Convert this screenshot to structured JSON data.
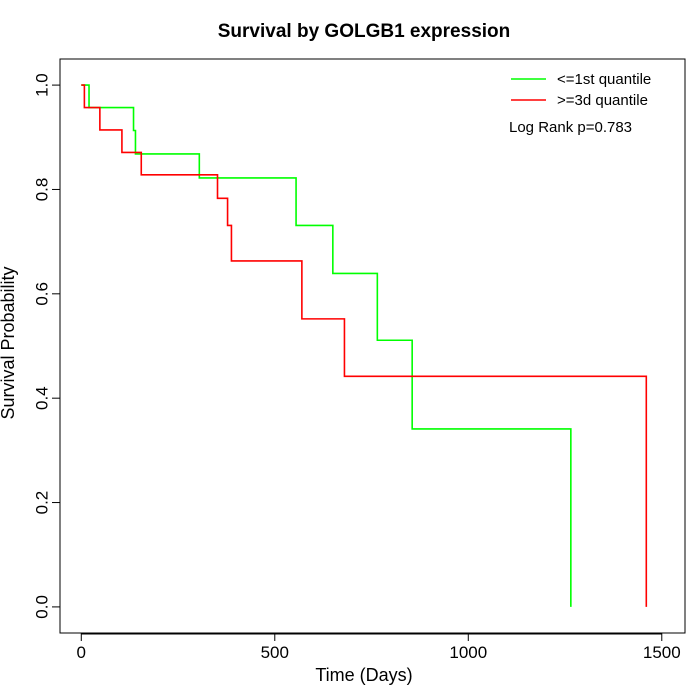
{
  "chart_data": {
    "type": "line",
    "title": "Survival by GOLGB1 expression",
    "xlabel": "Time (Days)",
    "ylabel": "Survival Probability",
    "xlim": [
      -55,
      1560
    ],
    "ylim": [
      -0.05,
      1.05
    ],
    "xticks": [
      0,
      500,
      1000,
      1500
    ],
    "yticks": [
      0.0,
      0.2,
      0.4,
      0.6,
      0.8,
      1.0
    ],
    "ytick_labels": [
      "0.0",
      "0.2",
      "0.4",
      "0.6",
      "0.8",
      "1.0"
    ],
    "grid": false,
    "legend_position": "top-right",
    "annotation": "Log Rank p=0.783",
    "series": [
      {
        "name": "<=1st quantile",
        "color": "#00ff00",
        "steps": [
          [
            0,
            1.0
          ],
          [
            20,
            0.957
          ],
          [
            135,
            0.913
          ],
          [
            140,
            0.868
          ],
          [
            305,
            0.822
          ],
          [
            555,
            0.731
          ],
          [
            650,
            0.639
          ],
          [
            765,
            0.511
          ],
          [
            855,
            0.341
          ],
          [
            1265,
            0.0
          ]
        ]
      },
      {
        "name": ">=3d quantile",
        "color": "#ff0000",
        "steps": [
          [
            0,
            1.0
          ],
          [
            8,
            0.957
          ],
          [
            48,
            0.914
          ],
          [
            105,
            0.871
          ],
          [
            155,
            0.828
          ],
          [
            352,
            0.783
          ],
          [
            378,
            0.731
          ],
          [
            388,
            0.663
          ],
          [
            570,
            0.552
          ],
          [
            680,
            0.442
          ],
          [
            1460,
            0.0
          ]
        ]
      }
    ]
  }
}
